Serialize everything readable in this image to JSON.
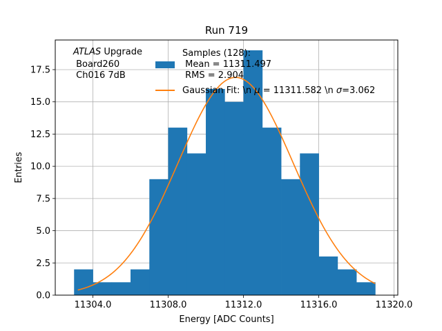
{
  "chart_data": {
    "type": "bar",
    "title": "Run 719",
    "xlabel": "Energy [ADC Counts]",
    "ylabel": "Entries",
    "xlim": [
      11302,
      11320.2
    ],
    "ylim": [
      0,
      19.8
    ],
    "grid": true,
    "legend_placement": "top-right",
    "xticks": [
      11304,
      11308,
      11312,
      11316,
      11320
    ],
    "xtick_labels": [
      "11304.0",
      "11308.0",
      "11312.0",
      "11316.0",
      "11320.0"
    ],
    "yticks": [
      0,
      2.5,
      5,
      7.5,
      10,
      12.5,
      15,
      17.5
    ],
    "ytick_labels": [
      "0.0",
      "2.5",
      "5.0",
      "7.5",
      "10.0",
      "12.5",
      "15.0",
      "17.5"
    ],
    "histogram": {
      "name": "Samples (128):\n Mean = 11311.497\n RMS = 2.904",
      "color": "#1f77b4",
      "bin_edges": [
        11303,
        11304,
        11305,
        11306,
        11307,
        11308,
        11309,
        11310,
        11311,
        11312,
        11313,
        11314,
        11315,
        11316,
        11317,
        11318,
        11319
      ],
      "counts": [
        2,
        1,
        1,
        2,
        9,
        13,
        11,
        16,
        15,
        19,
        13,
        9,
        11,
        3,
        2,
        1
      ]
    },
    "fit": {
      "name": "Gaussian Fit: \\n μ = 11311.582 \\n σ=3.062",
      "color": "#ff7f0e",
      "amplitude": 16.9,
      "mu": 11311.582,
      "sigma": 3.062,
      "x_range": [
        11303.2,
        11319
      ]
    },
    "legend": {
      "samples_lines": [
        "Samples (128):",
        " Mean = 11311.497",
        " RMS = 2.904"
      ],
      "fit_parts": {
        "prefix": "Gaussian Fit: \\n ",
        "mu_symbol": "μ",
        "mu_text": " = 11311.582 \\n ",
        "sigma_symbol": "σ",
        "sigma_text": "=3.062"
      }
    },
    "annotation": {
      "italic": "ATLAS",
      "rest": " Upgrade",
      "line2": " Board260",
      "line3": " Ch016 7dB"
    }
  }
}
